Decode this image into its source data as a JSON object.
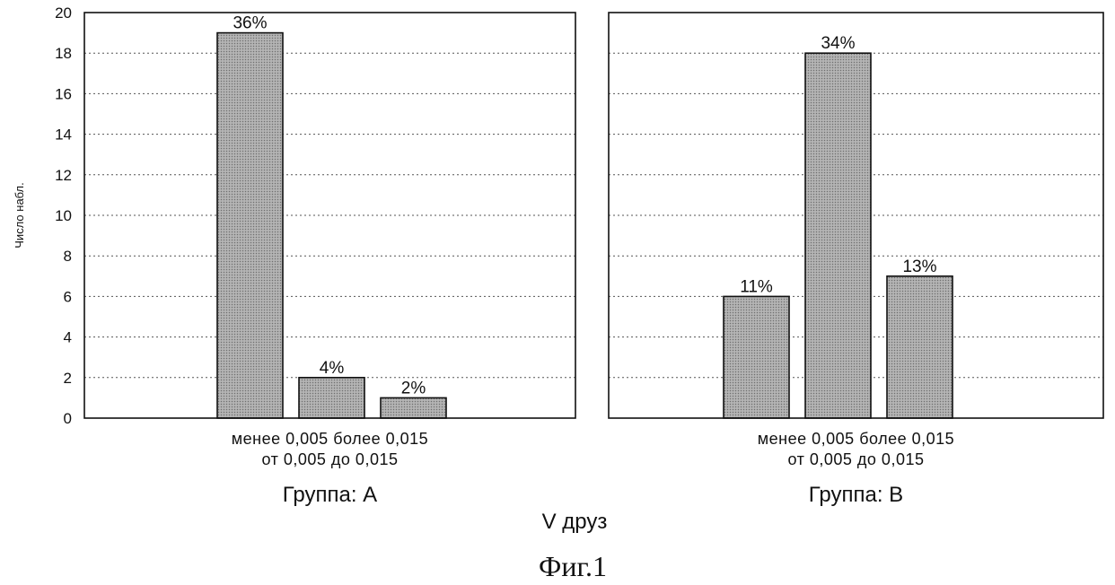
{
  "chart_data": {
    "type": "bar",
    "ylabel": "Число набл.",
    "xlabel": "V друз",
    "caption": "Фиг.1",
    "ylim": [
      0,
      20
    ],
    "yticks": [
      0,
      2,
      4,
      6,
      8,
      10,
      12,
      14,
      16,
      18,
      20
    ],
    "grid": true,
    "category_label_lines": [
      [
        "менее 0,005",
        "более 0,015"
      ],
      [
        "от 0,005 до 0,015"
      ]
    ],
    "categories": [
      "менее 0,005",
      "от 0,005 до 0,015",
      "более 0,015"
    ],
    "panels": [
      {
        "title": "Группа: А",
        "values": [
          19,
          2,
          1
        ],
        "labels": [
          "36%",
          "4%",
          "2%"
        ]
      },
      {
        "title": "Группа: В",
        "values": [
          6,
          18,
          7
        ],
        "labels": [
          "11%",
          "34%",
          "13%"
        ]
      }
    ]
  }
}
